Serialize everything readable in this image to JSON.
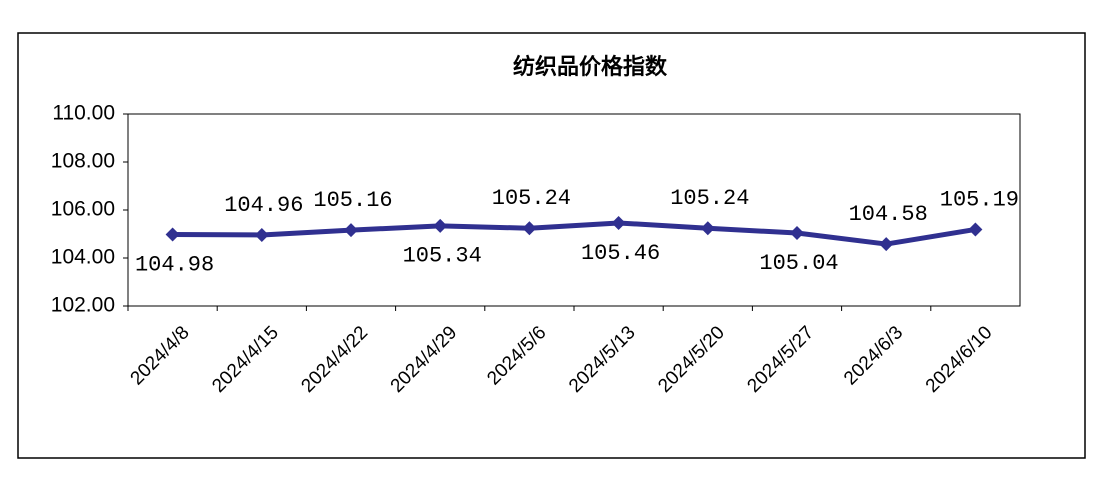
{
  "chart_data": {
    "type": "line",
    "title": "纺织品价格指数",
    "categories": [
      "2024/4/8",
      "2024/4/15",
      "2024/4/22",
      "2024/4/29",
      "2024/5/6",
      "2024/5/13",
      "2024/5/20",
      "2024/5/27",
      "2024/6/3",
      "2024/6/10"
    ],
    "values": [
      104.98,
      104.96,
      105.16,
      105.34,
      105.24,
      105.46,
      105.24,
      105.04,
      104.58,
      105.19
    ],
    "color": "#303090",
    "ylim": [
      102,
      110
    ],
    "yticks": [
      {
        "value": 102,
        "label": "102.00"
      },
      {
        "value": 104,
        "label": "104.00"
      },
      {
        "value": 106,
        "label": "106.00"
      },
      {
        "value": 108,
        "label": "108.00"
      },
      {
        "value": 110,
        "label": "110.00"
      }
    ]
  }
}
